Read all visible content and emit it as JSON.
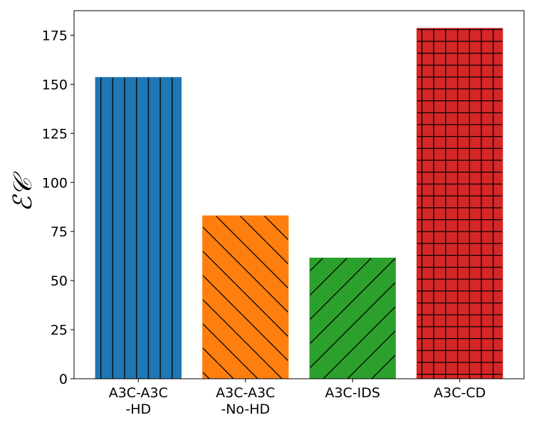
{
  "chart_data": {
    "type": "bar",
    "title": "",
    "xlabel": "",
    "ylabel": "ℰ𝒞",
    "categories": [
      [
        "A3C-A3C",
        "-HD"
      ],
      [
        "A3C-A3C",
        "-No-HD"
      ],
      [
        "A3C-IDS"
      ],
      [
        "A3C-CD"
      ]
    ],
    "values": [
      153.5,
      83,
      61.5,
      178.5
    ],
    "colors": [
      "#1f77b4",
      "#ff7f0e",
      "#2ca02c",
      "#d62728"
    ],
    "hatches": [
      "vertical",
      "diagonal-down",
      "diagonal-up",
      "grid"
    ],
    "ylim": [
      0,
      187.5
    ],
    "yticks": [
      0,
      25,
      50,
      75,
      100,
      125,
      150,
      175
    ],
    "grid": false,
    "legend": "none"
  }
}
